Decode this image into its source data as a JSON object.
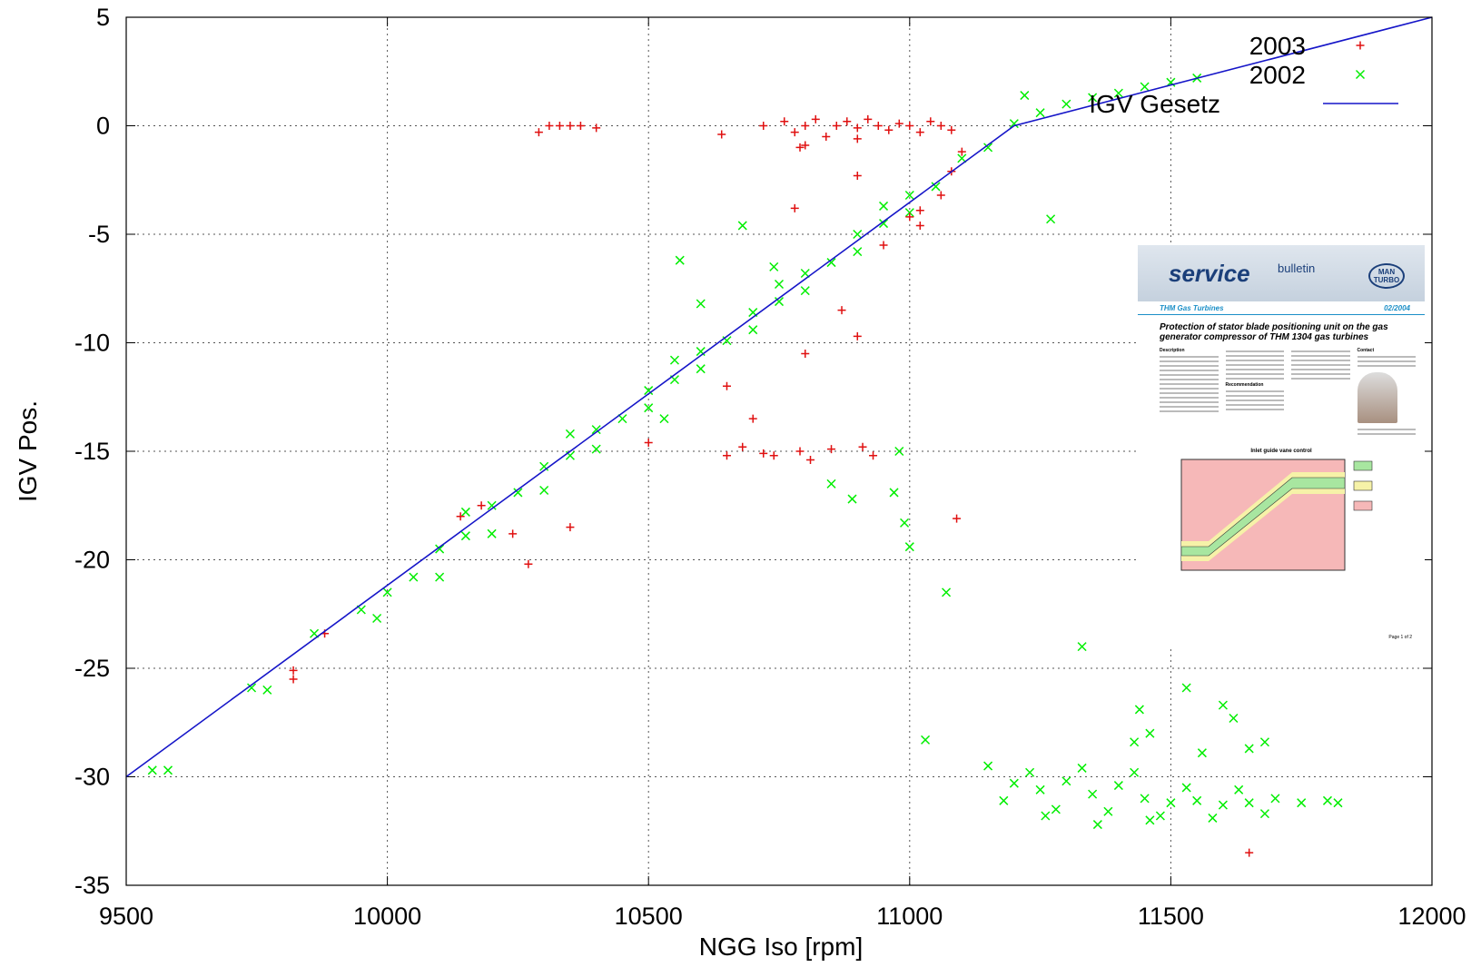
{
  "chart_data": {
    "type": "scatter",
    "x_label": "NGG Iso [rpm]",
    "y_label": "IGV Pos.",
    "xlim": [
      9500,
      12000
    ],
    "ylim": [
      -35,
      5
    ],
    "xticks": [
      9500,
      10000,
      10500,
      11000,
      11500,
      12000
    ],
    "yticks": [
      5,
      0,
      -5,
      -10,
      -15,
      -20,
      -25,
      -30,
      -35
    ],
    "grid": true,
    "legend": "top-right",
    "series": [
      {
        "name": "2003",
        "color": "#e01010",
        "marker": "+",
        "x": [
          10290,
          10310,
          10330,
          10350,
          10370,
          10400,
          10640,
          10720,
          10760,
          10780,
          10800,
          10820,
          10840,
          10860,
          10880,
          10900,
          10920,
          10940,
          10960,
          10980,
          11000,
          11020,
          11040,
          11060,
          11080,
          10800,
          10900,
          10790,
          10650,
          10680,
          10720,
          10740,
          10790,
          10810,
          10850,
          10910,
          10930,
          10700,
          10140,
          10180,
          10240,
          10270,
          10350,
          10500,
          10650,
          10800,
          10870,
          10900,
          11000,
          11020,
          10950,
          10780,
          10900,
          11090,
          9820,
          9820,
          9880,
          11650,
          11100,
          11020,
          11060,
          11080
        ],
        "y": [
          -0.3,
          0,
          0,
          0,
          0,
          -0.1,
          -0.4,
          0,
          0.2,
          -0.3,
          0,
          0.3,
          -0.5,
          0,
          0.2,
          -0.1,
          0.3,
          0,
          -0.2,
          0.1,
          0,
          -0.3,
          0.2,
          0,
          -0.2,
          -0.9,
          -0.6,
          -1.0,
          -15.2,
          -14.8,
          -15.1,
          -15.2,
          -15.0,
          -15.4,
          -14.9,
          -14.8,
          -15.2,
          -13.5,
          -18.0,
          -17.5,
          -18.8,
          -20.2,
          -18.5,
          -14.6,
          -12.0,
          -10.5,
          -8.5,
          -9.7,
          -4.2,
          -3.9,
          -5.5,
          -3.8,
          -2.3,
          -18.1,
          -25.1,
          -25.5,
          -23.4,
          -33.5,
          -1.2,
          -4.6,
          -3.2,
          -2.1
        ]
      },
      {
        "name": "2002",
        "color": "#00ee00",
        "marker": "x",
        "x": [
          9550,
          9580,
          9740,
          9770,
          9860,
          9950,
          9980,
          10000,
          10050,
          10100,
          10150,
          10200,
          10250,
          10300,
          10350,
          10400,
          10450,
          10500,
          10550,
          10600,
          10650,
          10700,
          10750,
          10800,
          10850,
          10900,
          10950,
          11000,
          11050,
          11100,
          11150,
          11200,
          11250,
          11300,
          11350,
          11400,
          11450,
          11500,
          11550,
          10100,
          10200,
          10300,
          10400,
          10500,
          10600,
          10700,
          10800,
          10900,
          11000,
          10150,
          10350,
          10550,
          10750,
          10950,
          10560,
          10600,
          10680,
          10740,
          10530,
          10850,
          10890,
          10980,
          10990,
          11000,
          11070,
          10970,
          11030,
          11330,
          11440,
          11270,
          11220,
          11150,
          11200,
          11250,
          11300,
          11350,
          11400,
          11450,
          11500,
          11550,
          11600,
          11650,
          11700,
          11750,
          11800,
          11820,
          11180,
          11280,
          11380,
          11480,
          11580,
          11680,
          11230,
          11330,
          11430,
          11530,
          11630,
          11260,
          11360,
          11460,
          11430,
          11460,
          11530,
          11600,
          11620,
          11650,
          11560,
          11680
        ],
        "y": [
          -29.7,
          -29.7,
          -25.9,
          -26,
          -23.4,
          -22.3,
          -22.7,
          -21.5,
          -20.8,
          -19.5,
          -18.9,
          -17.5,
          -16.9,
          -15.7,
          -15.2,
          -14.0,
          -13.5,
          -12.2,
          -11.7,
          -10.4,
          -9.9,
          -8.6,
          -8.1,
          -6.8,
          -6.3,
          -5.0,
          -4.5,
          -3.2,
          -2.8,
          -1.5,
          -1.0,
          0.1,
          0.6,
          1.0,
          1.3,
          1.5,
          1.8,
          2.0,
          2.2,
          -20.8,
          -18.8,
          -16.8,
          -14.9,
          -13.0,
          -11.2,
          -9.4,
          -7.6,
          -5.8,
          -4.0,
          -17.8,
          -14.2,
          -10.8,
          -7.3,
          -3.7,
          -6.2,
          -8.2,
          -4.6,
          -6.5,
          -13.5,
          -16.5,
          -17.2,
          -15.0,
          -18.3,
          -19.4,
          -21.5,
          -16.9,
          -28.3,
          -24.0,
          -26.9,
          -4.3,
          1.4,
          -29.5,
          -30.3,
          -30.6,
          -30.2,
          -30.8,
          -30.4,
          -31.0,
          -31.2,
          -31.1,
          -31.3,
          -31.2,
          -31.0,
          -31.2,
          -31.1,
          -31.2,
          -31.1,
          -31.5,
          -31.6,
          -31.8,
          -31.9,
          -31.7,
          -29.8,
          -29.6,
          -29.8,
          -30.5,
          -30.6,
          -31.8,
          -32.2,
          -32.0,
          -28.4,
          -28.0,
          -25.9,
          -26.7,
          -27.3,
          -28.7,
          -28.9,
          -28.4
        ]
      },
      {
        "name": "IGV Gesetz",
        "color": "#1515c8",
        "marker": "line",
        "x": [
          9500,
          11200,
          12000
        ],
        "y": [
          -30,
          0,
          5
        ]
      }
    ]
  },
  "inset": {
    "brand": "service",
    "brand2": "bulletin",
    "logo": "MAN TURBO",
    "section": "THM Gas Turbines",
    "date": "02/2004",
    "headline": "Protection of stator blade positioning unit on the gas generator compressor of THM 1304 gas turbines",
    "headings": [
      "Description",
      "Recommendation",
      "Contact"
    ],
    "diagram_title": "Inlet guide vane control",
    "page": "Page 1 of 2"
  }
}
